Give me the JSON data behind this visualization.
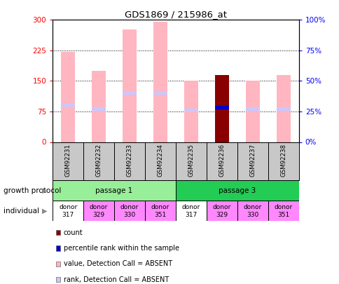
{
  "title": "GDS1869 / 215986_at",
  "samples": [
    "GSM92231",
    "GSM92232",
    "GSM92233",
    "GSM92234",
    "GSM92235",
    "GSM92236",
    "GSM92237",
    "GSM92238"
  ],
  "values_absent": [
    222,
    175,
    277,
    295,
    150,
    0,
    150,
    165
  ],
  "rank_absent": [
    30,
    27,
    40,
    40,
    26,
    0,
    27,
    27
  ],
  "count_value": [
    0,
    0,
    0,
    0,
    0,
    165,
    0,
    0
  ],
  "percentile_rank": [
    0,
    0,
    0,
    0,
    0,
    28,
    0,
    0
  ],
  "ylim_left": [
    0,
    300
  ],
  "ylim_right": [
    0,
    100
  ],
  "yticks_left": [
    0,
    75,
    150,
    225,
    300
  ],
  "yticks_right": [
    0,
    25,
    50,
    75,
    100
  ],
  "ytick_labels_left": [
    "0",
    "75",
    "150",
    "225",
    "300"
  ],
  "ytick_labels_right": [
    "0%",
    "25%",
    "50%",
    "75%",
    "100%"
  ],
  "color_value_absent": "#FFB6C1",
  "color_rank_absent": "#C8C8FF",
  "color_count": "#880000",
  "color_percentile": "#0000CC",
  "passage_groups": [
    {
      "label": "passage 1",
      "start": 0,
      "end": 4,
      "color": "#99EE99"
    },
    {
      "label": "passage 3",
      "start": 4,
      "end": 8,
      "color": "#22CC55"
    }
  ],
  "individuals": [
    "donor\n317",
    "donor\n329",
    "donor\n330",
    "donor\n351",
    "donor\n317",
    "donor\n329",
    "donor\n330",
    "donor\n351"
  ],
  "ind_colors": [
    "#FFFFFF",
    "#FF88FF",
    "#FF88FF",
    "#FF88FF",
    "#FFFFFF",
    "#FF88FF",
    "#FF88FF",
    "#FF88FF"
  ],
  "legend_items": [
    {
      "label": "count",
      "color": "#880000"
    },
    {
      "label": "percentile rank within the sample",
      "color": "#0000CC"
    },
    {
      "label": "value, Detection Call = ABSENT",
      "color": "#FFB6C1"
    },
    {
      "label": "rank, Detection Call = ABSENT",
      "color": "#C8C8FF"
    }
  ]
}
